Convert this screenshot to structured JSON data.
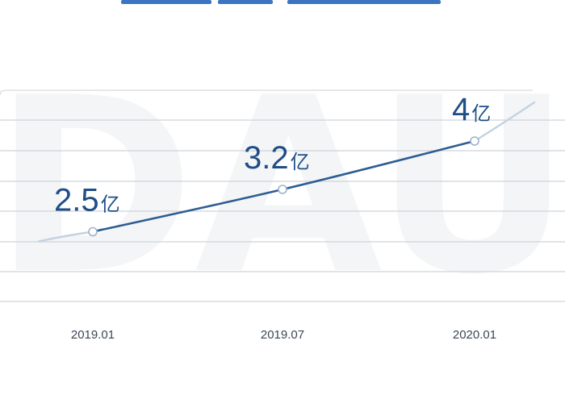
{
  "chart_data": {
    "type": "line",
    "categories": [
      "2019.01",
      "2019.07",
      "2020.01"
    ],
    "series": [
      {
        "values": [
          2.5,
          3.2,
          4
        ]
      }
    ],
    "data_labels": [
      {
        "value": "2.5",
        "unit": "亿"
      },
      {
        "value": "3.2",
        "unit": "亿"
      },
      {
        "value": "4",
        "unit": "亿"
      }
    ],
    "watermark": "DAU",
    "ylim": [
      1.4,
      5
    ],
    "grid": true,
    "line_color": "#2e5d93",
    "label_color": "#1f4e86"
  }
}
